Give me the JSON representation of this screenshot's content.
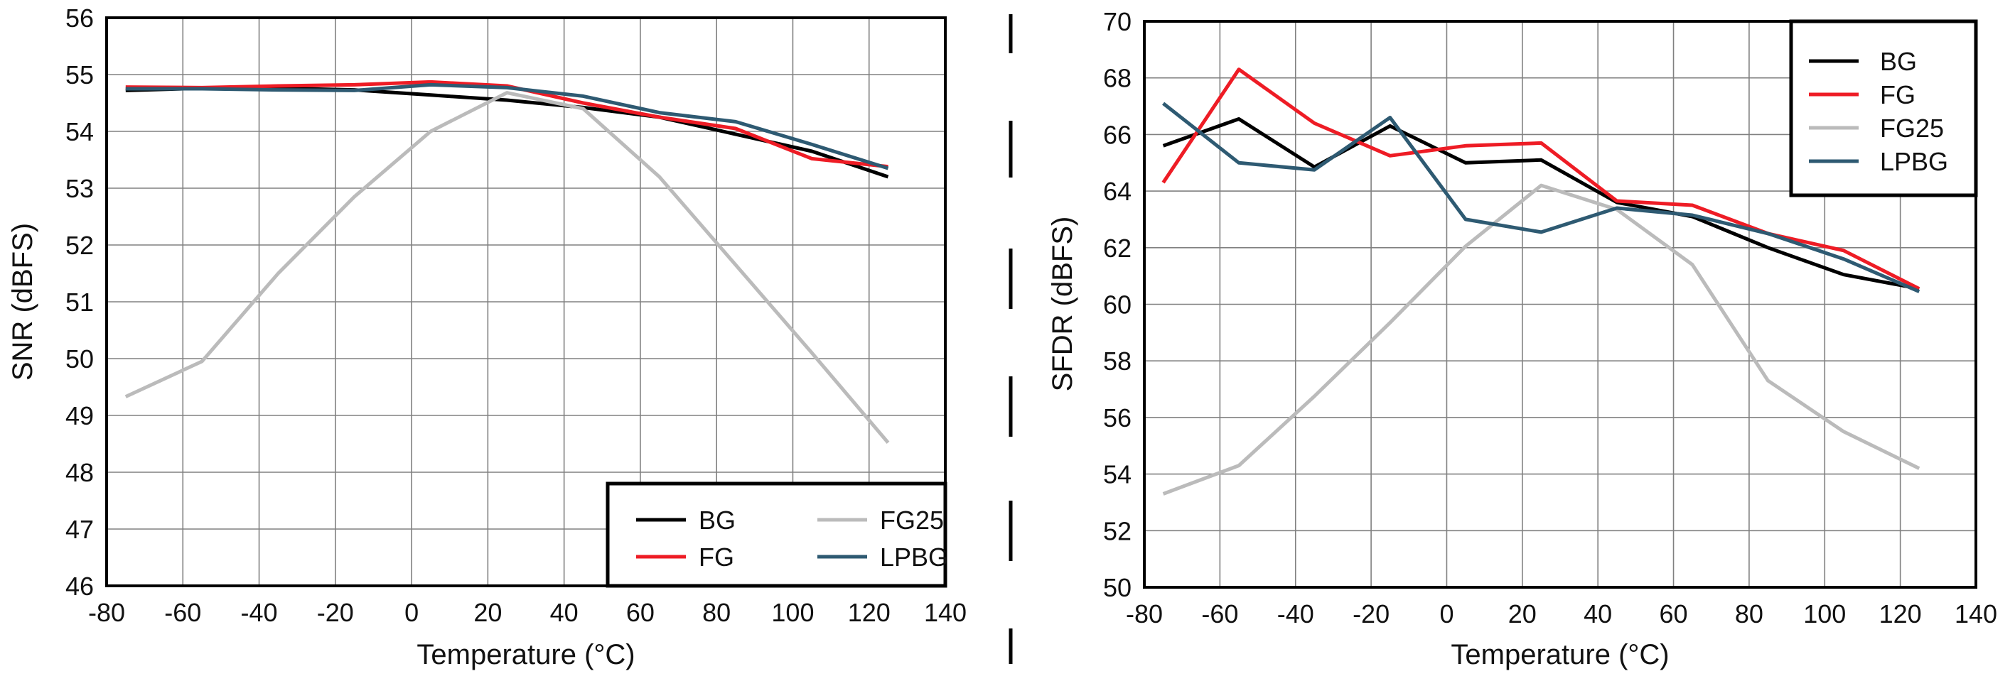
{
  "chart_data": [
    {
      "type": "line",
      "title": "",
      "xlabel": "Temperature (°C)",
      "ylabel": "SNR (dBFS)",
      "xlim": [
        -80,
        140
      ],
      "ylim": [
        46,
        56
      ],
      "xticks": [
        -80,
        -60,
        -40,
        -20,
        0,
        20,
        40,
        60,
        80,
        100,
        120,
        140
      ],
      "xtick_labels": [
        "-80",
        "-60",
        "-40",
        "-20",
        "0",
        "20",
        "40",
        "60",
        "80",
        "100",
        "120",
        "140"
      ],
      "yticks": [
        46,
        47,
        48,
        49,
        50,
        51,
        52,
        53,
        54,
        55,
        56
      ],
      "ytick_labels": [
        "46",
        "47",
        "48",
        "49",
        "50",
        "51",
        "52",
        "53",
        "54",
        "55",
        "56"
      ],
      "grid": true,
      "legend_position": "bottom-right",
      "legend_columns": 2,
      "series": [
        {
          "name": "BG",
          "color": "#000000",
          "x": [
            -75,
            -55,
            -35,
            -15,
            5,
            25,
            45,
            65,
            85,
            105,
            125
          ],
          "y": [
            54.72,
            54.76,
            54.76,
            54.73,
            54.64,
            54.55,
            54.42,
            54.25,
            53.95,
            53.65,
            53.2
          ]
        },
        {
          "name": "FG",
          "color": "#ee1c25",
          "x": [
            -75,
            -55,
            -35,
            -15,
            5,
            25,
            45,
            65,
            85,
            105,
            125
          ],
          "y": [
            54.78,
            54.77,
            54.8,
            54.82,
            54.87,
            54.8,
            54.5,
            54.25,
            54.05,
            53.52,
            53.38
          ]
        },
        {
          "name": "FG25",
          "color": "#bbbbbb",
          "x": [
            -75,
            -55,
            -35,
            -15,
            5,
            25,
            45,
            65,
            85,
            105,
            125
          ],
          "y": [
            49.33,
            49.95,
            51.5,
            52.85,
            54.0,
            54.68,
            54.4,
            53.2,
            51.65,
            50.1,
            48.52
          ]
        },
        {
          "name": "LPBG",
          "color": "#2e5a72",
          "x": [
            -75,
            -55,
            -35,
            -15,
            5,
            25,
            45,
            65,
            85,
            105,
            125
          ],
          "y": [
            54.75,
            54.75,
            54.73,
            54.72,
            54.82,
            54.77,
            54.62,
            54.33,
            54.17,
            53.77,
            53.35
          ]
        }
      ]
    },
    {
      "type": "line",
      "title": "",
      "xlabel": "Temperature (°C)",
      "ylabel": "SFDR (dBFS)",
      "xlim": [
        -80,
        140
      ],
      "ylim": [
        50,
        70
      ],
      "xticks": [
        -80,
        -60,
        -40,
        -20,
        0,
        20,
        40,
        60,
        80,
        100,
        120,
        140
      ],
      "xtick_labels": [
        "-80",
        "-60",
        "-40",
        "-20",
        "0",
        "20",
        "40",
        "60",
        "80",
        "100",
        "120",
        "140"
      ],
      "yticks": [
        50,
        52,
        54,
        56,
        58,
        60,
        62,
        64,
        66,
        68,
        70
      ],
      "ytick_labels": [
        "50",
        "52",
        "54",
        "56",
        "58",
        "60",
        "62",
        "64",
        "66",
        "68",
        "70"
      ],
      "grid": true,
      "legend_position": "top-right",
      "legend_columns": 1,
      "series": [
        {
          "name": "BG",
          "color": "#000000",
          "x": [
            -75,
            -55,
            -35,
            -15,
            5,
            25,
            45,
            65,
            85,
            105,
            125
          ],
          "y": [
            65.6,
            66.55,
            64.85,
            66.3,
            65.0,
            65.1,
            63.6,
            63.1,
            62.0,
            61.05,
            60.55
          ]
        },
        {
          "name": "FG",
          "color": "#ee1c25",
          "x": [
            -75,
            -55,
            -35,
            -15,
            5,
            25,
            45,
            65,
            85,
            105,
            125
          ],
          "y": [
            64.3,
            68.3,
            66.4,
            65.25,
            65.6,
            65.7,
            63.65,
            63.5,
            62.5,
            61.9,
            60.55
          ]
        },
        {
          "name": "FG25",
          "color": "#bbbbbb",
          "x": [
            -75,
            -55,
            -35,
            -15,
            5,
            25,
            45,
            65,
            85,
            105,
            125
          ],
          "y": [
            53.3,
            54.3,
            56.75,
            59.35,
            62.05,
            64.2,
            63.35,
            61.4,
            57.3,
            55.5,
            54.2
          ]
        },
        {
          "name": "LPBG",
          "color": "#2e5a72",
          "x": [
            -75,
            -55,
            -35,
            -15,
            5,
            25,
            45,
            65,
            85,
            105,
            125
          ],
          "y": [
            67.1,
            65.0,
            64.75,
            66.6,
            63.0,
            62.55,
            63.4,
            63.15,
            62.5,
            61.6,
            60.45
          ]
        }
      ]
    }
  ]
}
